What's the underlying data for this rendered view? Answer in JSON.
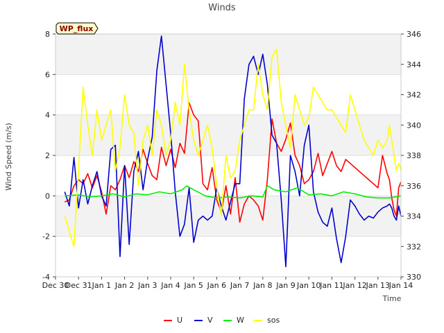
{
  "chart_data": {
    "type": "line",
    "title": "Winds",
    "badge": "WP_flux",
    "xlabel": "Time",
    "ylabel": "Wind Speed (m/s)",
    "ylim": [
      -4,
      8
    ],
    "y2lim": [
      330,
      346
    ],
    "x_range": [
      0,
      15
    ],
    "x_ticks": [
      0,
      1,
      2,
      3,
      4,
      5,
      6,
      7,
      8,
      9,
      10,
      11,
      12,
      13,
      14,
      15
    ],
    "x_tick_labels": [
      "Dec 30",
      "Dec 31",
      "Jan 1",
      "Jan 2",
      "Jan 3",
      "Jan 4",
      "Jan 5",
      "Jan 6",
      "Jan 7",
      "Jan 8",
      "Jan 9",
      "Jan 10",
      "Jan 11",
      "Jan 12",
      "Jan 13",
      "Jan 14"
    ],
    "y_ticks": [
      -4,
      -2,
      0,
      2,
      4,
      6,
      8
    ],
    "y2_ticks": [
      330,
      332,
      334,
      336,
      338,
      340,
      342,
      344,
      346
    ],
    "grid": "horizontal bands",
    "legend_position": "bottom",
    "series": [
      {
        "name": "U",
        "axis": "left",
        "color": "#ff0000",
        "x": [
          0.4,
          0.6,
          0.8,
          1.0,
          1.2,
          1.4,
          1.6,
          1.8,
          2.0,
          2.2,
          2.4,
          2.6,
          2.8,
          3.0,
          3.2,
          3.4,
          3.6,
          3.8,
          4.0,
          4.2,
          4.4,
          4.6,
          4.8,
          5.0,
          5.2,
          5.4,
          5.6,
          5.8,
          6.0,
          6.2,
          6.4,
          6.6,
          6.8,
          7.0,
          7.2,
          7.4,
          7.6,
          7.8,
          8.0,
          8.2,
          8.4,
          8.6,
          8.8,
          9.0,
          9.2,
          9.4,
          9.6,
          9.8,
          10.0,
          10.2,
          10.4,
          10.6,
          10.8,
          11.0,
          11.2,
          11.4,
          11.6,
          11.8,
          12.0,
          12.2,
          12.4,
          12.6,
          12.8,
          13.0,
          13.2,
          13.4,
          13.6,
          13.8,
          14.0,
          14.2,
          14.4,
          14.5,
          14.6,
          14.7,
          14.8,
          14.9,
          15.0
        ],
        "y": [
          -0.3,
          -0.2,
          0.5,
          0.8,
          0.6,
          1.1,
          0.4,
          1.0,
          0.2,
          -0.9,
          0.5,
          0.3,
          0.8,
          1.5,
          0.9,
          1.7,
          1.2,
          2.3,
          1.6,
          1.0,
          0.8,
          2.4,
          1.5,
          2.3,
          1.4,
          2.6,
          2.1,
          4.6,
          4.0,
          3.7,
          0.6,
          0.3,
          1.4,
          -0.2,
          -0.8,
          0.5,
          -0.9,
          0.9,
          -1.3,
          -0.4,
          0.0,
          -0.2,
          -0.5,
          -1.2,
          0.8,
          3.8,
          2.6,
          2.2,
          2.8,
          3.6,
          2.0,
          1.5,
          0.6,
          0.8,
          1.2,
          2.1,
          1.0,
          1.6,
          2.2,
          1.5,
          1.2,
          1.8,
          1.6,
          1.4,
          1.2,
          1.0,
          0.8,
          0.6,
          0.4,
          2.0,
          1.1,
          0.8,
          -0.1,
          -0.7,
          -1.0,
          0.4,
          0.7
        ]
      },
      {
        "name": "V",
        "axis": "left",
        "color": "#0000cc",
        "x": [
          0.4,
          0.6,
          0.8,
          1.0,
          1.2,
          1.4,
          1.6,
          1.8,
          2.0,
          2.2,
          2.4,
          2.6,
          2.8,
          3.0,
          3.2,
          3.4,
          3.6,
          3.8,
          4.0,
          4.2,
          4.4,
          4.6,
          4.8,
          5.0,
          5.2,
          5.4,
          5.6,
          5.8,
          6.0,
          6.2,
          6.4,
          6.6,
          6.8,
          7.0,
          7.2,
          7.4,
          7.6,
          7.8,
          8.0,
          8.2,
          8.4,
          8.6,
          8.8,
          9.0,
          9.2,
          9.4,
          9.6,
          9.8,
          10.0,
          10.2,
          10.4,
          10.6,
          10.8,
          11.0,
          11.2,
          11.4,
          11.6,
          11.8,
          12.0,
          12.2,
          12.4,
          12.6,
          12.8,
          13.0,
          13.2,
          13.4,
          13.6,
          13.8,
          14.0,
          14.2,
          14.4,
          14.5,
          14.6,
          14.7,
          14.8,
          14.9,
          15.0
        ],
        "y": [
          0.2,
          -0.5,
          1.9,
          -0.6,
          0.8,
          -0.4,
          0.5,
          1.2,
          0.0,
          -0.5,
          2.3,
          2.5,
          -3.0,
          1.5,
          -2.4,
          1.2,
          2.2,
          0.3,
          1.8,
          2.9,
          6.2,
          7.9,
          5.5,
          3.1,
          0.2,
          -2.0,
          -1.4,
          0.4,
          -2.3,
          -1.2,
          -1.0,
          -1.2,
          -1.0,
          0.4,
          -0.5,
          -1.2,
          -0.3,
          0.6,
          0.6,
          4.8,
          6.5,
          6.9,
          6.0,
          7.0,
          5.5,
          3.0,
          2.6,
          -0.2,
          -3.5,
          2.0,
          1.2,
          0.0,
          2.5,
          3.5,
          0.2,
          -0.8,
          -1.3,
          -1.5,
          -0.6,
          -2.1,
          -3.3,
          -2.0,
          -0.2,
          -0.5,
          -0.9,
          -1.2,
          -1.0,
          -1.1,
          -0.8,
          -0.6,
          -0.5,
          -0.4,
          -0.6,
          -1.0,
          -1.2,
          -0.5,
          -1.0
        ]
      },
      {
        "name": "W",
        "axis": "left",
        "color": "#00ee00",
        "x": [
          0.4,
          1.0,
          1.5,
          2.0,
          2.5,
          3.0,
          3.5,
          4.0,
          4.5,
          5.0,
          5.5,
          5.7,
          6.0,
          6.5,
          7.0,
          7.5,
          8.0,
          8.5,
          9.0,
          9.2,
          9.5,
          10.0,
          10.5,
          11.0,
          11.5,
          12.0,
          12.5,
          13.0,
          13.5,
          14.0,
          14.5,
          15.0
        ],
        "y": [
          0.0,
          0.05,
          -0.05,
          0.0,
          0.1,
          -0.05,
          0.1,
          0.05,
          0.2,
          0.1,
          0.3,
          0.5,
          0.3,
          0.0,
          -0.1,
          -0.05,
          -0.1,
          0.0,
          -0.05,
          0.5,
          0.3,
          0.2,
          0.4,
          0.05,
          0.1,
          0.0,
          0.2,
          0.1,
          -0.05,
          -0.1,
          -0.1,
          0.0
        ]
      },
      {
        "name": "sos",
        "axis": "right",
        "color": "#ffff00",
        "x": [
          0.4,
          0.6,
          0.8,
          1.0,
          1.2,
          1.4,
          1.6,
          1.8,
          2.0,
          2.2,
          2.4,
          2.6,
          2.8,
          3.0,
          3.2,
          3.4,
          3.6,
          3.8,
          4.0,
          4.2,
          4.4,
          4.6,
          4.8,
          5.0,
          5.2,
          5.4,
          5.6,
          5.8,
          6.0,
          6.2,
          6.4,
          6.6,
          6.8,
          7.0,
          7.2,
          7.4,
          7.6,
          7.8,
          8.0,
          8.2,
          8.4,
          8.6,
          8.8,
          9.0,
          9.2,
          9.4,
          9.6,
          9.8,
          10.0,
          10.2,
          10.4,
          10.6,
          10.8,
          11.0,
          11.2,
          11.4,
          11.6,
          11.8,
          12.0,
          12.2,
          12.4,
          12.6,
          12.8,
          13.0,
          13.2,
          13.4,
          13.6,
          13.8,
          14.0,
          14.2,
          14.4,
          14.5,
          14.6,
          14.7,
          14.8,
          14.9,
          15.0
        ],
        "y": [
          334,
          333,
          332,
          337,
          342.5,
          340,
          338,
          341,
          339,
          340,
          341,
          337,
          338.5,
          342,
          340,
          339.5,
          336,
          339,
          340,
          338,
          341,
          340,
          338,
          339,
          341.5,
          340,
          344,
          341,
          339,
          338,
          339,
          340,
          338.5,
          336,
          334,
          338,
          336.5,
          337,
          339,
          340,
          341,
          341,
          344,
          342,
          341,
          344.5,
          345,
          341.5,
          340,
          338.5,
          342,
          341,
          340,
          340.5,
          342.5,
          342,
          341.5,
          341,
          341,
          340.5,
          340,
          339.5,
          342,
          341,
          340,
          339,
          338.5,
          338,
          339,
          338.5,
          339,
          340,
          339,
          338,
          337,
          337.5,
          337
        ]
      }
    ]
  },
  "legend": [
    {
      "label": "U",
      "color": "#ff0000"
    },
    {
      "label": "V",
      "color": "#0000cc"
    },
    {
      "label": "W",
      "color": "#00ee00"
    },
    {
      "label": "sos",
      "color": "#ffff00"
    }
  ]
}
